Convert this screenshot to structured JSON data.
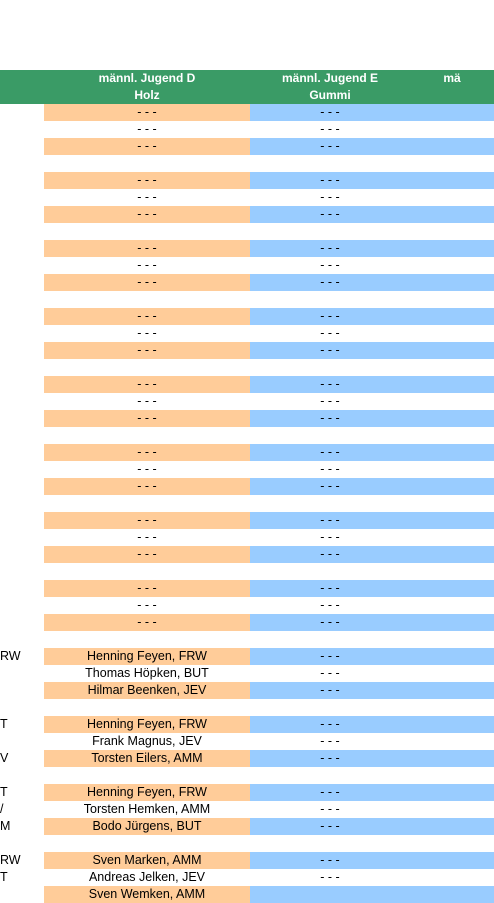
{
  "headers": [
    {
      "line1": "",
      "line2": ""
    },
    {
      "line1": "männl. Jugend D",
      "line2": "Holz"
    },
    {
      "line1": "männl. Jugend E",
      "line2": "Gummi"
    },
    {
      "line1": "mä",
      "line2": ""
    }
  ],
  "rows": [
    {
      "c0": "",
      "c1": "- - -",
      "c2": "- - -",
      "c1bg": "orange",
      "c2bg": "blue"
    },
    {
      "c0": "",
      "c1": "- - -",
      "c2": "- - -",
      "c1bg": "white",
      "c2bg": "white"
    },
    {
      "c0": "",
      "c1": "- - -",
      "c2": "- - -",
      "c1bg": "orange",
      "c2bg": "blue"
    },
    {
      "c0": "",
      "c1": "",
      "c2": "",
      "c1bg": "white",
      "c2bg": "white"
    },
    {
      "c0": "",
      "c1": "- - -",
      "c2": "- - -",
      "c1bg": "orange",
      "c2bg": "blue"
    },
    {
      "c0": "",
      "c1": "- - -",
      "c2": "- - -",
      "c1bg": "white",
      "c2bg": "white"
    },
    {
      "c0": "",
      "c1": "- - -",
      "c2": "- - -",
      "c1bg": "orange",
      "c2bg": "blue"
    },
    {
      "c0": "",
      "c1": "",
      "c2": "",
      "c1bg": "white",
      "c2bg": "white"
    },
    {
      "c0": "",
      "c1": "- - -",
      "c2": "- - -",
      "c1bg": "orange",
      "c2bg": "blue"
    },
    {
      "c0": "",
      "c1": "- - -",
      "c2": "- - -",
      "c1bg": "white",
      "c2bg": "white"
    },
    {
      "c0": "",
      "c1": "- - -",
      "c2": "- - -",
      "c1bg": "orange",
      "c2bg": "blue"
    },
    {
      "c0": "",
      "c1": "",
      "c2": "",
      "c1bg": "white",
      "c2bg": "white"
    },
    {
      "c0": "",
      "c1": "- - -",
      "c2": "- - -",
      "c1bg": "orange",
      "c2bg": "blue"
    },
    {
      "c0": "",
      "c1": "- - -",
      "c2": "- - -",
      "c1bg": "white",
      "c2bg": "white"
    },
    {
      "c0": "",
      "c1": "- - -",
      "c2": "- - -",
      "c1bg": "orange",
      "c2bg": "blue"
    },
    {
      "c0": "",
      "c1": "",
      "c2": "",
      "c1bg": "white",
      "c2bg": "white"
    },
    {
      "c0": "",
      "c1": "- - -",
      "c2": "- - -",
      "c1bg": "orange",
      "c2bg": "blue"
    },
    {
      "c0": "",
      "c1": "- - -",
      "c2": "- - -",
      "c1bg": "white",
      "c2bg": "white"
    },
    {
      "c0": "",
      "c1": "- - -",
      "c2": "- - -",
      "c1bg": "orange",
      "c2bg": "blue"
    },
    {
      "c0": "",
      "c1": "",
      "c2": "",
      "c1bg": "white",
      "c2bg": "white"
    },
    {
      "c0": "",
      "c1": "- - -",
      "c2": "- - -",
      "c1bg": "orange",
      "c2bg": "blue"
    },
    {
      "c0": "",
      "c1": "- - -",
      "c2": "- - -",
      "c1bg": "white",
      "c2bg": "white"
    },
    {
      "c0": "",
      "c1": "- - -",
      "c2": "- - -",
      "c1bg": "orange",
      "c2bg": "blue"
    },
    {
      "c0": "",
      "c1": "",
      "c2": "",
      "c1bg": "white",
      "c2bg": "white"
    },
    {
      "c0": "",
      "c1": "- - -",
      "c2": "- - -",
      "c1bg": "orange",
      "c2bg": "blue"
    },
    {
      "c0": "",
      "c1": "- - -",
      "c2": "- - -",
      "c1bg": "white",
      "c2bg": "white"
    },
    {
      "c0": "",
      "c1": "- - -",
      "c2": "- - -",
      "c1bg": "orange",
      "c2bg": "blue"
    },
    {
      "c0": "",
      "c1": "",
      "c2": "",
      "c1bg": "white",
      "c2bg": "white"
    },
    {
      "c0": "",
      "c1": "- - -",
      "c2": "- - -",
      "c1bg": "orange",
      "c2bg": "blue"
    },
    {
      "c0": "",
      "c1": "- - -",
      "c2": "- - -",
      "c1bg": "white",
      "c2bg": "white"
    },
    {
      "c0": "",
      "c1": "- - -",
      "c2": "- - -",
      "c1bg": "orange",
      "c2bg": "blue"
    },
    {
      "c0": "",
      "c1": "",
      "c2": "",
      "c1bg": "white",
      "c2bg": "white"
    },
    {
      "c0": "RW",
      "c1": "Henning Feyen, FRW",
      "c2": "- - -",
      "c1bg": "orange",
      "c2bg": "blue"
    },
    {
      "c0": "",
      "c1": "Thomas Höpken, BUT",
      "c2": "- - -",
      "c1bg": "white",
      "c2bg": "white"
    },
    {
      "c0": "",
      "c1": "Hilmar Beenken, JEV",
      "c2": "- - -",
      "c1bg": "orange",
      "c2bg": "blue"
    },
    {
      "c0": "",
      "c1": "",
      "c2": "",
      "c1bg": "white",
      "c2bg": "white"
    },
    {
      "c0": "T",
      "c1": "Henning Feyen, FRW",
      "c2": "- - -",
      "c1bg": "orange",
      "c2bg": "blue"
    },
    {
      "c0": "",
      "c1": "Frank Magnus, JEV",
      "c2": "- - -",
      "c1bg": "white",
      "c2bg": "white"
    },
    {
      "c0": "V",
      "c1": "Torsten Eilers, AMM",
      "c2": "- - -",
      "c1bg": "orange",
      "c2bg": "blue"
    },
    {
      "c0": "",
      "c1": "",
      "c2": "",
      "c1bg": "white",
      "c2bg": "white"
    },
    {
      "c0": "T",
      "c1": "Henning Feyen, FRW",
      "c2": "- - -",
      "c1bg": "orange",
      "c2bg": "blue"
    },
    {
      "c0": "/",
      "c1": "Torsten Hemken, AMM",
      "c2": "- - -",
      "c1bg": "white",
      "c2bg": "white"
    },
    {
      "c0": "M",
      "c1": "Bodo Jürgens, BUT",
      "c2": "- - -",
      "c1bg": "orange",
      "c2bg": "blue"
    },
    {
      "c0": "",
      "c1": "",
      "c2": "",
      "c1bg": "white",
      "c2bg": "white"
    },
    {
      "c0": "RW",
      "c1": "Sven Marken, AMM",
      "c2": "- - -",
      "c1bg": "orange",
      "c2bg": "blue"
    },
    {
      "c0": "T",
      "c1": "Andreas Jelken, JEV",
      "c2": "- - -",
      "c1bg": "white",
      "c2bg": "white"
    },
    {
      "c0": "",
      "c1": "Sven Wemken, AMM",
      "c2": "",
      "c1bg": "orange",
      "c2bg": "blue"
    }
  ],
  "colors": {
    "header": "#3a9b66",
    "orange": "#ffcc99",
    "blue": "#99ccff"
  }
}
